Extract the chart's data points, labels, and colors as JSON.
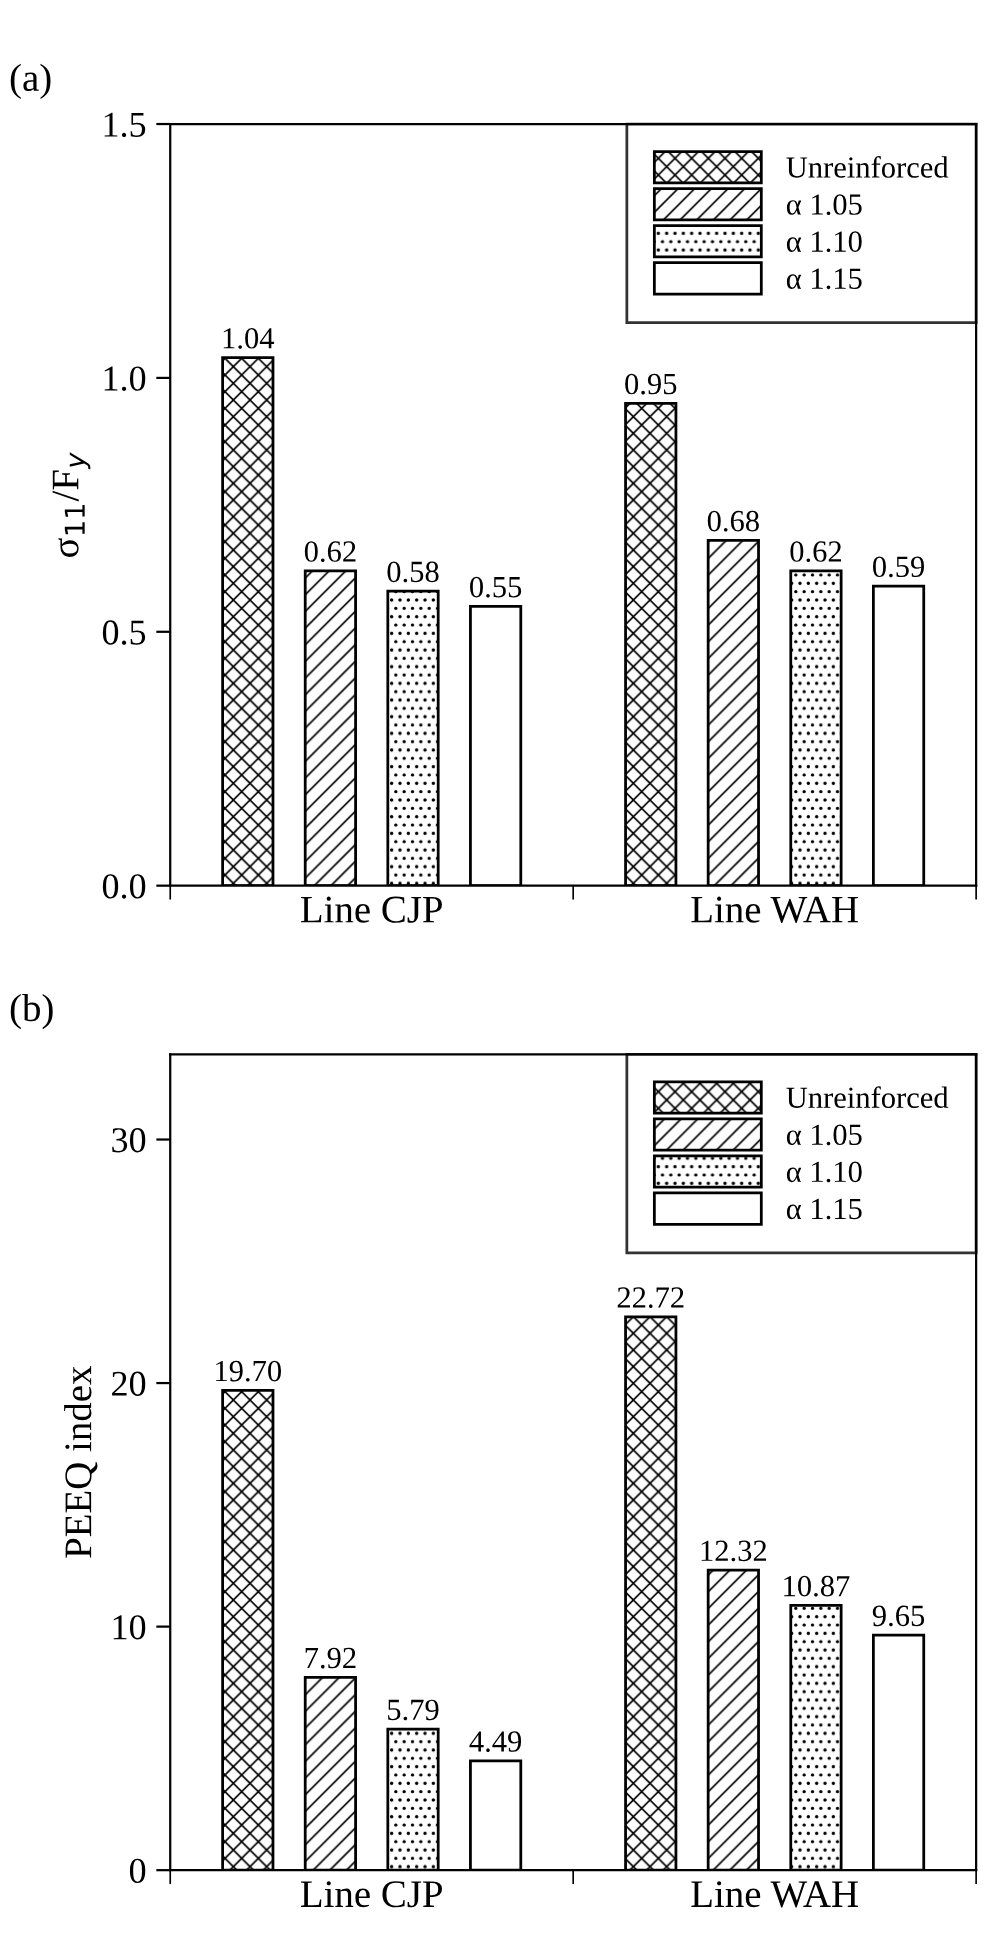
{
  "chart_data": [
    {
      "type": "bar",
      "title": "(a)",
      "ylabel": "σ$_{11}$/F$_{y}$",
      "categories": [
        "Line CJP",
        "Line WAH"
      ],
      "ylim": [
        0,
        1.5
      ],
      "yticks": [
        {
          "value": 0,
          "label": "0.0"
        },
        {
          "value": 0.5,
          "label": "0.5"
        },
        {
          "value": 1.0,
          "label": "1.0"
        },
        {
          "value": 1.5,
          "label": "1.5"
        }
      ],
      "legend": "top right",
      "grid": false,
      "series": [
        {
          "name": "Unreinforced",
          "color": "#000000",
          "values": [
            1.04,
            0.95
          ],
          "value_labels": [
            "1.04",
            "0.95"
          ]
        },
        {
          "name": "α 1.05",
          "color": "#000000",
          "values": [
            0.62,
            0.68
          ],
          "value_labels": [
            "0.62",
            "0.68"
          ]
        },
        {
          "name": "α 1.10",
          "color": "#000000",
          "values": [
            0.58,
            0.62
          ],
          "value_labels": [
            "0.58",
            "0.62"
          ]
        },
        {
          "name": "α 1.15",
          "color": "#ffffff",
          "values": [
            0.55,
            0.59
          ],
          "value_labels": [
            "0.55",
            "0.59"
          ]
        }
      ]
    },
    {
      "type": "bar",
      "title": "(b)",
      "ylabel": "PEEQ index",
      "categories": [
        "Line CJP",
        "Line WAH"
      ],
      "ylim": [
        0,
        33.5
      ],
      "yticks": [
        0,
        10,
        20,
        30
      ],
      "legend": "top right",
      "grid": false,
      "series": [
        {
          "name": "Unreinforced",
          "color": "#000000",
          "values": [
            19.7,
            22.72
          ],
          "value_labels": [
            "19.70",
            "22.72"
          ]
        },
        {
          "name": "α 1.05",
          "color": "#000000",
          "values": [
            7.92,
            12.32
          ],
          "value_labels": [
            "7.92",
            "12.32"
          ]
        },
        {
          "name": "α 1.10",
          "color": "#000000",
          "values": [
            5.79,
            10.87
          ],
          "value_labels": [
            "5.79",
            "10.87"
          ]
        },
        {
          "name": "α 1.15",
          "color": "#ffffff",
          "values": [
            4.49,
            9.65
          ],
          "value_labels": [
            "4.49",
            "9.65"
          ]
        }
      ]
    }
  ]
}
